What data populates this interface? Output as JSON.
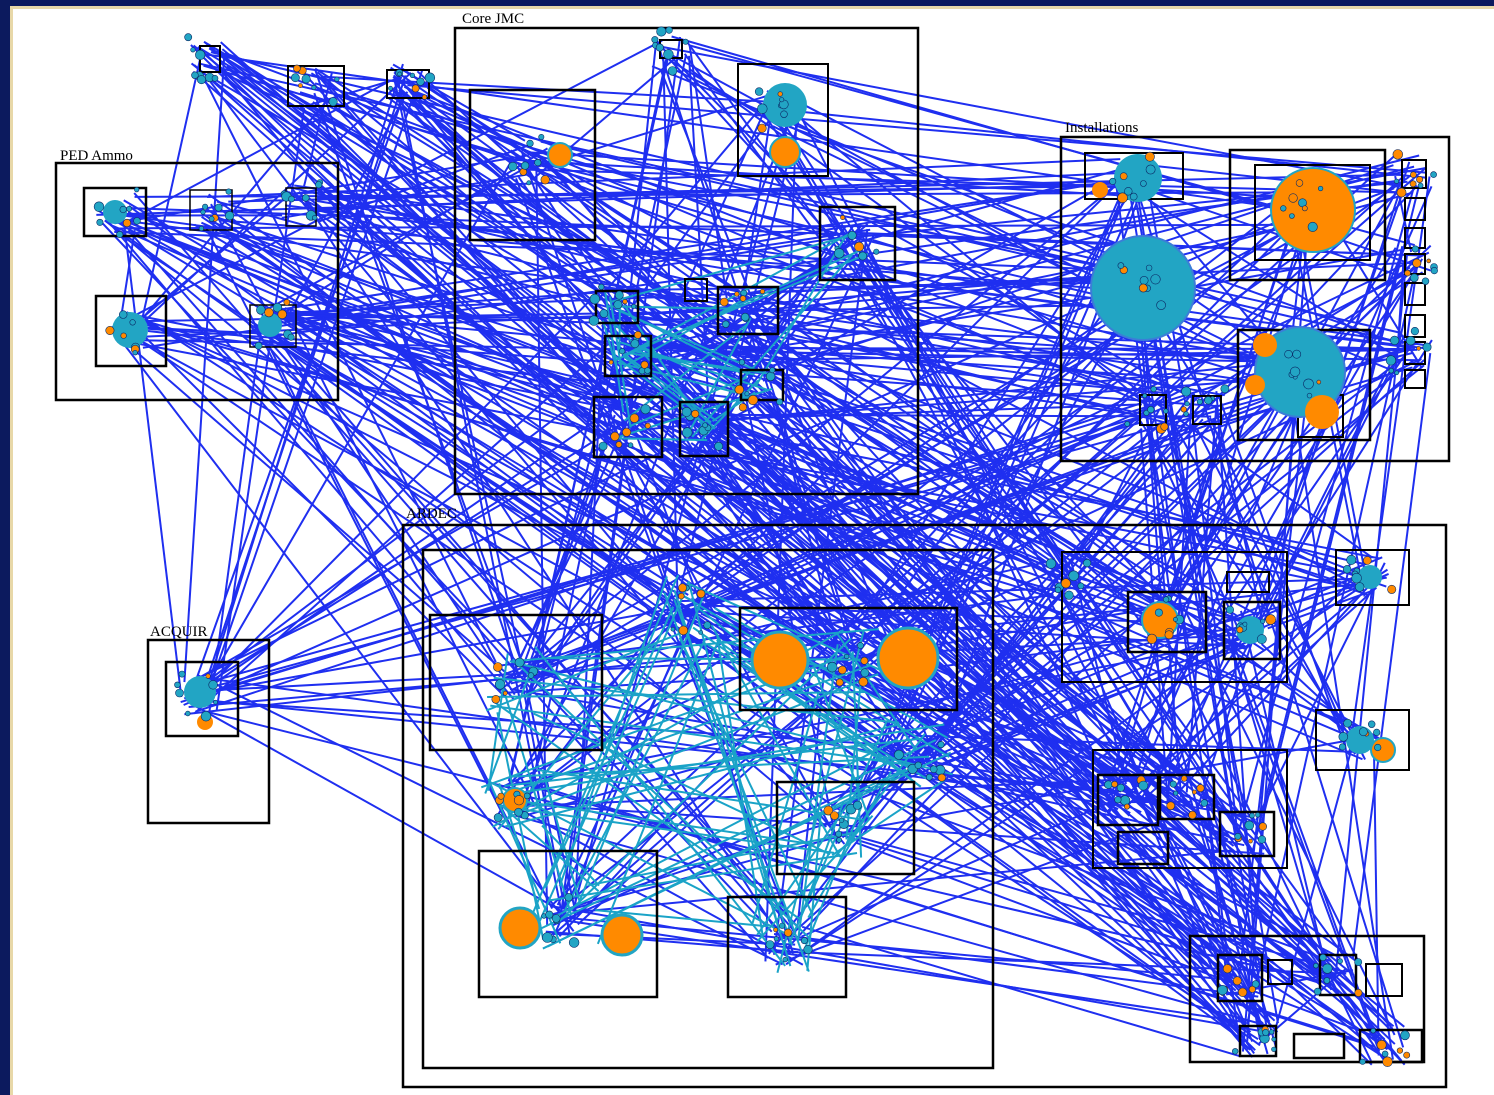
{
  "groups": [
    {
      "id": "core-jmc",
      "label": "Core JMC"
    },
    {
      "id": "ped-ammo",
      "label": "PED Ammo"
    },
    {
      "id": "installations",
      "label": "Installations"
    },
    {
      "id": "ardec",
      "label": "ARDEC"
    },
    {
      "id": "acquir",
      "label": "ACQUIR"
    }
  ],
  "colors": {
    "background_frame": "#0c1a5e",
    "edge_primary": "#1f2ff0",
    "edge_secondary": "#1aa3c7",
    "node_orange": "#ff8a00",
    "node_teal": "#22a5c4",
    "box_stroke": "#000000"
  }
}
